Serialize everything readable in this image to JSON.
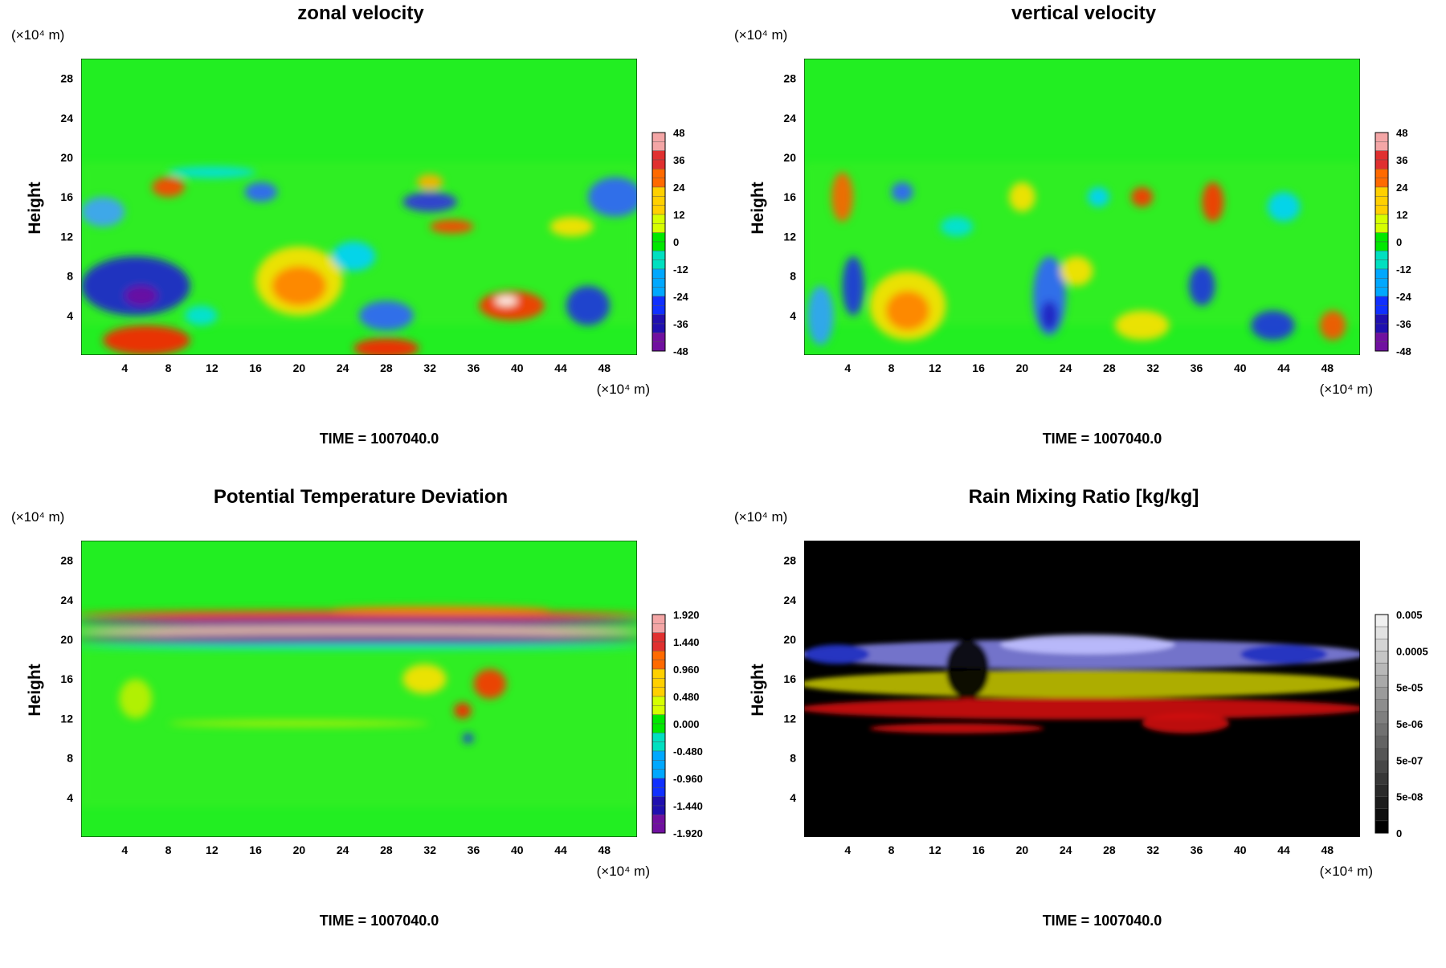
{
  "chart_data": [
    {
      "type": "heatmap",
      "title": "zonal velocity",
      "ylabel": "Height",
      "x_unit": "(×10⁴ m)",
      "y_unit": "(×10⁴ m)",
      "xticks": [
        "4",
        "8",
        "12",
        "16",
        "20",
        "24",
        "28",
        "32",
        "36",
        "40",
        "44",
        "48"
      ],
      "yticks": [
        "4",
        "8",
        "12",
        "16",
        "20",
        "24",
        "28"
      ],
      "xlim": [
        0,
        51
      ],
      "ylim": [
        0,
        30
      ],
      "colorbar": {
        "scale": "rainbow",
        "labels": [
          "48",
          "36",
          "24",
          "12",
          "0",
          "-12",
          "-24",
          "-36",
          "-48"
        ]
      },
      "features": [
        {
          "x": 5,
          "y": 7,
          "rx": 5,
          "ry": 3,
          "color": "#2020d0"
        },
        {
          "x": 5.5,
          "y": 6,
          "rx": 1.5,
          "ry": 1,
          "color": "#7010a0"
        },
        {
          "x": 20,
          "y": 7.5,
          "rx": 4,
          "ry": 3.5,
          "color": "#ffe000"
        },
        {
          "x": 20,
          "y": 7,
          "rx": 2.5,
          "ry": 2,
          "color": "#ff8000"
        },
        {
          "x": 6,
          "y": 1.5,
          "rx": 4,
          "ry": 1.5,
          "color": "#ff2000"
        },
        {
          "x": 28,
          "y": 0.7,
          "rx": 3,
          "ry": 1,
          "color": "#ff2000"
        },
        {
          "x": 39.5,
          "y": 5,
          "rx": 3,
          "ry": 1.5,
          "color": "#ff3000"
        },
        {
          "x": 39,
          "y": 5.5,
          "rx": 1,
          "ry": 0.5,
          "color": "#ffffff"
        },
        {
          "x": 46.5,
          "y": 5,
          "rx": 2,
          "ry": 2,
          "color": "#2030e0"
        },
        {
          "x": 28,
          "y": 4,
          "rx": 2.5,
          "ry": 1.5,
          "color": "#3060ff"
        },
        {
          "x": 11,
          "y": 4,
          "rx": 1.5,
          "ry": 1,
          "color": "#00e0e0"
        },
        {
          "x": 8,
          "y": 17,
          "rx": 1.5,
          "ry": 1,
          "color": "#ff4000"
        },
        {
          "x": 16.5,
          "y": 16.5,
          "rx": 1.5,
          "ry": 1,
          "color": "#3060ff"
        },
        {
          "x": 32,
          "y": 15.5,
          "rx": 2.5,
          "ry": 1,
          "color": "#3030e0"
        },
        {
          "x": 32,
          "y": 17.5,
          "rx": 1.2,
          "ry": 0.8,
          "color": "#ffb000"
        },
        {
          "x": 34,
          "y": 13,
          "rx": 2,
          "ry": 0.7,
          "color": "#ff4000"
        },
        {
          "x": 49,
          "y": 16,
          "rx": 2.5,
          "ry": 2,
          "color": "#3060ff"
        },
        {
          "x": 25,
          "y": 10,
          "rx": 2,
          "ry": 1.5,
          "color": "#00d0ff"
        },
        {
          "x": 45,
          "y": 13,
          "rx": 2,
          "ry": 1,
          "color": "#ffe000"
        },
        {
          "x": 2,
          "y": 14.5,
          "rx": 2,
          "ry": 1.5,
          "color": "#40a0ff"
        },
        {
          "x": 12,
          "y": 18.5,
          "rx": 4,
          "ry": 0.6,
          "color": "#00e0e0"
        }
      ],
      "caption": "TIME = 1007040.0"
    },
    {
      "type": "heatmap",
      "title": "vertical velocity",
      "ylabel": "Height",
      "x_unit": "(×10⁴ m)",
      "y_unit": "(×10⁴ m)",
      "xticks": [
        "4",
        "8",
        "12",
        "16",
        "20",
        "24",
        "28",
        "32",
        "36",
        "40",
        "44",
        "48"
      ],
      "yticks": [
        "4",
        "8",
        "12",
        "16",
        "20",
        "24",
        "28"
      ],
      "xlim": [
        0,
        51
      ],
      "ylim": [
        0,
        30
      ],
      "colorbar": {
        "scale": "rainbow",
        "labels": [
          "48",
          "36",
          "24",
          "12",
          "0",
          "-12",
          "-24",
          "-36",
          "-48"
        ]
      },
      "features": [
        {
          "x": 9.5,
          "y": 5,
          "rx": 3.5,
          "ry": 3.5,
          "color": "#ffe000"
        },
        {
          "x": 9.5,
          "y": 4.5,
          "rx": 2,
          "ry": 2,
          "color": "#ff8000"
        },
        {
          "x": 4.5,
          "y": 7,
          "rx": 1,
          "ry": 3,
          "color": "#2030e0"
        },
        {
          "x": 1.5,
          "y": 4,
          "rx": 1.2,
          "ry": 3,
          "color": "#30a0ff"
        },
        {
          "x": 22.5,
          "y": 6,
          "rx": 1.5,
          "ry": 4,
          "color": "#3060ff"
        },
        {
          "x": 22.5,
          "y": 4,
          "rx": 0.8,
          "ry": 1.5,
          "color": "#2020c0"
        },
        {
          "x": 36.5,
          "y": 7,
          "rx": 1.2,
          "ry": 2,
          "color": "#2030e0"
        },
        {
          "x": 43,
          "y": 3,
          "rx": 2,
          "ry": 1.5,
          "color": "#2030e0"
        },
        {
          "x": 48.5,
          "y": 3,
          "rx": 1.2,
          "ry": 1.5,
          "color": "#ff5000"
        },
        {
          "x": 31,
          "y": 3,
          "rx": 2.5,
          "ry": 1.5,
          "color": "#ffe000"
        },
        {
          "x": 25,
          "y": 8.5,
          "rx": 1.5,
          "ry": 1.5,
          "color": "#ffe000"
        },
        {
          "x": 37.5,
          "y": 15.5,
          "rx": 1,
          "ry": 2,
          "color": "#ff3000"
        },
        {
          "x": 31,
          "y": 16,
          "rx": 1,
          "ry": 1,
          "color": "#ff3000"
        },
        {
          "x": 3.5,
          "y": 16,
          "rx": 1,
          "ry": 2.5,
          "color": "#ff6000"
        },
        {
          "x": 20,
          "y": 16,
          "rx": 1.2,
          "ry": 1.5,
          "color": "#ffe000"
        },
        {
          "x": 9,
          "y": 16.5,
          "rx": 1,
          "ry": 1,
          "color": "#3060ff"
        },
        {
          "x": 27,
          "y": 16,
          "rx": 1,
          "ry": 1,
          "color": "#00d0ff"
        },
        {
          "x": 44,
          "y": 15,
          "rx": 1.5,
          "ry": 1.5,
          "color": "#00d0ff"
        },
        {
          "x": 14,
          "y": 13,
          "rx": 1.5,
          "ry": 1,
          "color": "#00e0e0"
        }
      ],
      "caption": "TIME = 1007040.0"
    },
    {
      "type": "heatmap",
      "title": "Potential Temperature Deviation",
      "ylabel": "Height",
      "x_unit": "(×10⁴ m)",
      "y_unit": "(×10⁴ m)",
      "xticks": [
        "4",
        "8",
        "12",
        "16",
        "20",
        "24",
        "28",
        "32",
        "36",
        "40",
        "44",
        "48"
      ],
      "yticks": [
        "4",
        "8",
        "12",
        "16",
        "20",
        "24",
        "28"
      ],
      "xlim": [
        0,
        51
      ],
      "ylim": [
        0,
        30
      ],
      "colorbar": {
        "scale": "rainbow",
        "labels": [
          "1.920",
          "1.440",
          "0.960",
          "0.480",
          "0.000",
          "-0.480",
          "-0.960",
          "-1.440",
          "-1.920"
        ]
      },
      "features": [
        {
          "x": 25.5,
          "y": 22.5,
          "rx": 26,
          "ry": 0.5,
          "color": "#ff4000"
        },
        {
          "x": 25.5,
          "y": 21.7,
          "rx": 26,
          "ry": 0.5,
          "color": "#7010a0"
        },
        {
          "x": 25.5,
          "y": 20.8,
          "rx": 26,
          "ry": 0.6,
          "color": "#f0b0b0"
        },
        {
          "x": 25.5,
          "y": 20,
          "rx": 26,
          "ry": 0.5,
          "color": "#6010a0"
        },
        {
          "x": 25.5,
          "y": 19.3,
          "rx": 26,
          "ry": 0.3,
          "color": "#00e0e0"
        },
        {
          "x": 33,
          "y": 23,
          "rx": 10,
          "ry": 0.4,
          "color": "#ff8000"
        },
        {
          "x": 37.5,
          "y": 15.5,
          "rx": 1.5,
          "ry": 1.5,
          "color": "#ff3000"
        },
        {
          "x": 35,
          "y": 12.8,
          "rx": 0.8,
          "ry": 0.8,
          "color": "#ff2000"
        },
        {
          "x": 31.5,
          "y": 16,
          "rx": 2,
          "ry": 1.5,
          "color": "#ffe000"
        },
        {
          "x": 35.5,
          "y": 10,
          "rx": 0.5,
          "ry": 0.5,
          "color": "#2030e0"
        },
        {
          "x": 20,
          "y": 11.5,
          "rx": 12,
          "ry": 0.3,
          "color": "#c0f000"
        },
        {
          "x": 5,
          "y": 14,
          "rx": 1.5,
          "ry": 2,
          "color": "#c0f000"
        }
      ],
      "caption": "TIME = 1007040.0"
    },
    {
      "type": "heatmap",
      "title": "Rain Mixing Ratio [kg/kg]",
      "ylabel": "Height",
      "x_unit": "(×10⁴ m)",
      "y_unit": "(×10⁴ m)",
      "xticks": [
        "4",
        "8",
        "12",
        "16",
        "20",
        "24",
        "28",
        "32",
        "36",
        "40",
        "44",
        "48"
      ],
      "yticks": [
        "4",
        "8",
        "12",
        "16",
        "20",
        "24",
        "28"
      ],
      "xlim": [
        0,
        51
      ],
      "ylim": [
        0,
        30
      ],
      "colorbar": {
        "scale": "gray",
        "labels": [
          "0.005",
          "0.0005",
          "5e-05",
          "5e-06",
          "5e-07",
          "5e-08",
          "0"
        ]
      },
      "features": [
        {
          "x": 25.5,
          "y": 18.5,
          "rx": 26,
          "ry": 1.5,
          "color": "#8080e0"
        },
        {
          "x": 26,
          "y": 19.5,
          "rx": 8,
          "ry": 1,
          "color": "#c0c0ff"
        },
        {
          "x": 44,
          "y": 18.5,
          "rx": 4,
          "ry": 1,
          "color": "#2030c0"
        },
        {
          "x": 3,
          "y": 18.5,
          "rx": 3,
          "ry": 1,
          "color": "#2030c0"
        },
        {
          "x": 25.5,
          "y": 15.5,
          "rx": 26,
          "ry": 1.4,
          "color": "#c0c000"
        },
        {
          "x": 25.5,
          "y": 13,
          "rx": 26,
          "ry": 1.1,
          "color": "#d01010"
        },
        {
          "x": 14,
          "y": 11,
          "rx": 8,
          "ry": 0.5,
          "color": "#d01010"
        },
        {
          "x": 35,
          "y": 11.5,
          "rx": 4,
          "ry": 1,
          "color": "#d01010"
        },
        {
          "x": 15,
          "y": 17,
          "rx": 2,
          "ry": 3,
          "color": "#000000"
        }
      ],
      "caption": "TIME = 1007040.0"
    }
  ]
}
